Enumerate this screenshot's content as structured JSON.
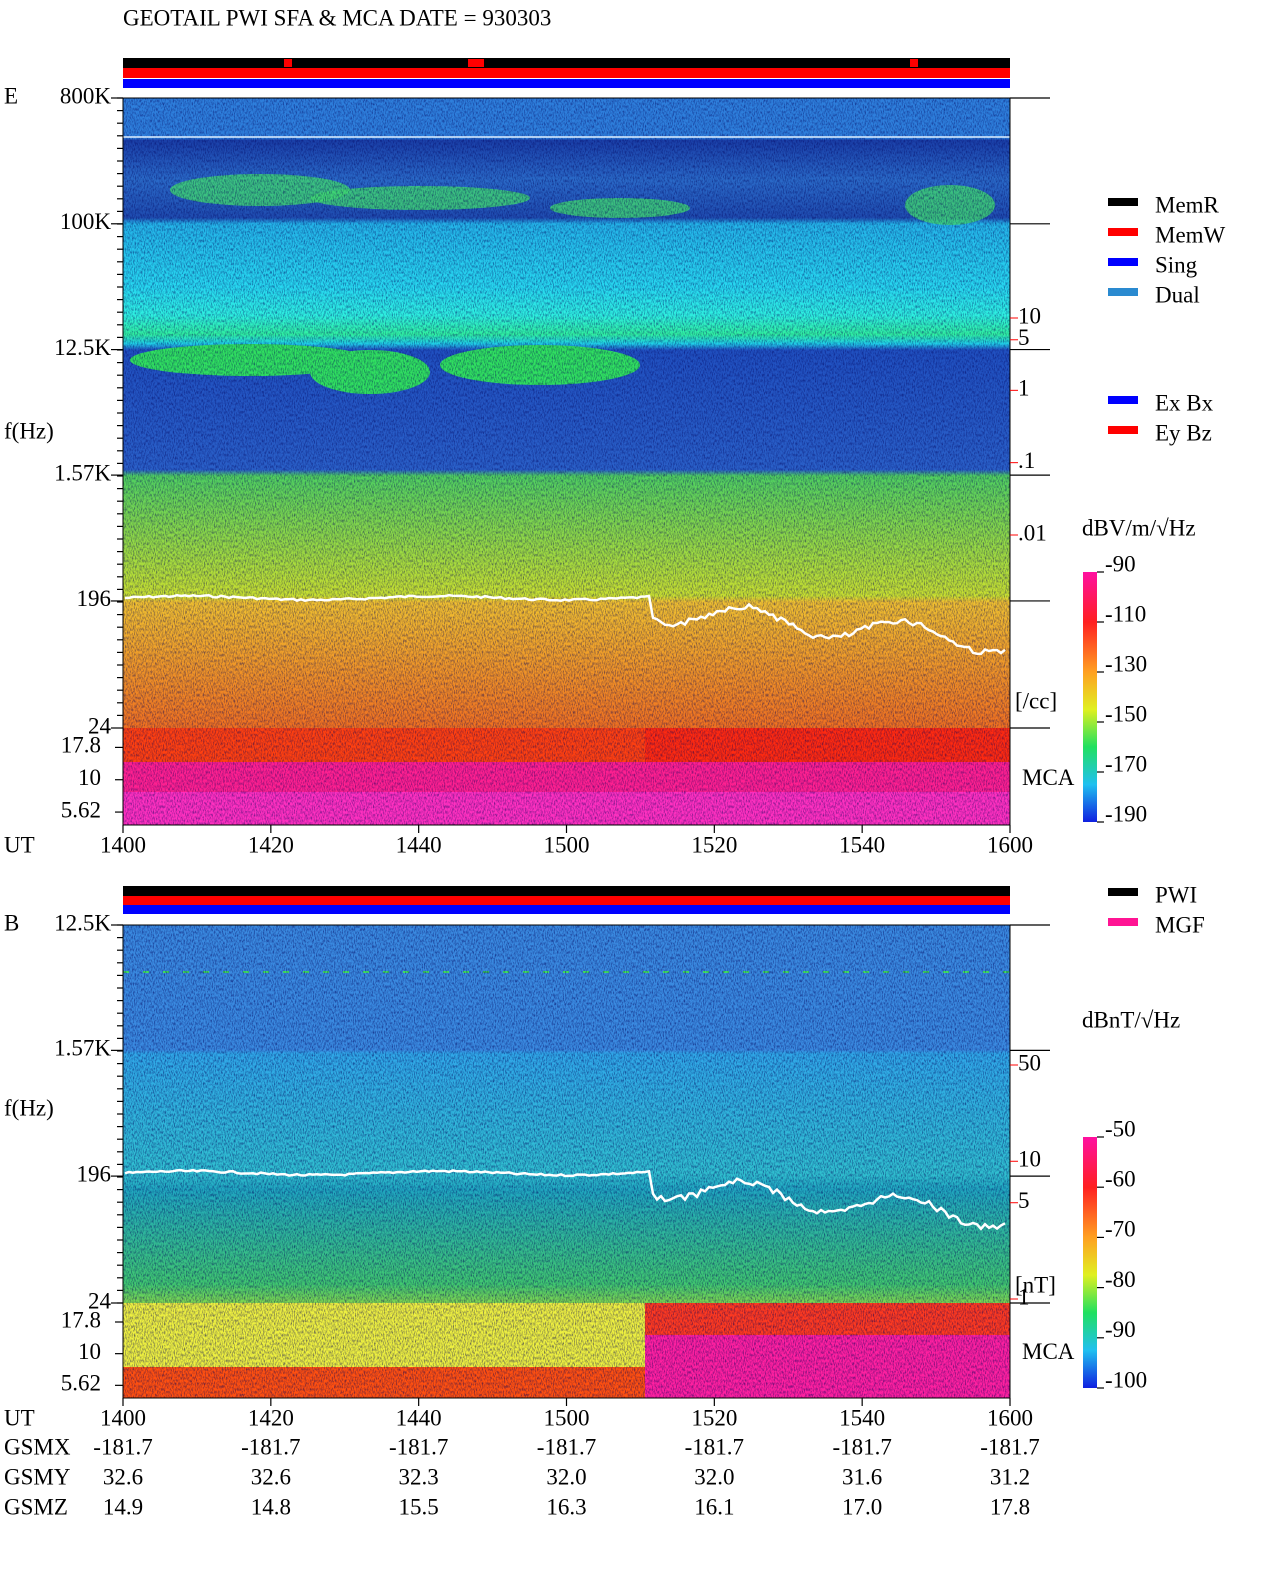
{
  "title": "GEOTAIL  PWI SFA & MCA   DATE = 930303",
  "panels": [
    {
      "label": "E",
      "y_label": "f(Hz)",
      "y_scale": "log",
      "ylim": [
        24,
        800000
      ],
      "yticks": [
        {
          "value": 800000,
          "label": "800K"
        },
        {
          "value": 100000,
          "label": "100K"
        },
        {
          "value": 12500,
          "label": "12.5K"
        },
        {
          "value": 1570,
          "label": "1.57K"
        },
        196,
        24
      ],
      "mca_label": "MCA",
      "mca_channels": [
        "17.8",
        "10",
        "5.62"
      ],
      "density_axis": {
        "scale": "log",
        "lim": [
          0.01,
          10
        ],
        "ticks": [
          10,
          5,
          1,
          {
            "value": 0.1,
            "label": ".1"
          },
          {
            "value": 0.01,
            "label": ".01"
          }
        ],
        "unit": "[/cc]",
        "color": "#ff0000"
      },
      "legend": [
        {
          "name": "MemR",
          "color": "#000000"
        },
        {
          "name": "MemW",
          "color": "#ff0000"
        },
        {
          "name": "Sing",
          "color": "#0000ff"
        },
        {
          "name": "Dual",
          "color": "#2a8ad0"
        }
      ],
      "legend2": [
        {
          "name": "Ex Bx",
          "color": "#0000ff"
        },
        {
          "name": "Ey Bz",
          "color": "#ff0000"
        }
      ],
      "colorbar": {
        "unit": "dBV/m/√Hz",
        "lim": [
          -190,
          -90
        ],
        "ticks": [
          -90,
          -110,
          -130,
          -150,
          -170,
          -190
        ]
      },
      "x_label": "UT",
      "xticks": [
        "1400",
        "1420",
        "1440",
        "1500",
        "1520",
        "1540",
        "1600"
      ]
    },
    {
      "label": "B",
      "y_label": "f(Hz)",
      "y_scale": "log",
      "ylim": [
        24,
        12500
      ],
      "yticks": [
        {
          "value": 12500,
          "label": "12.5K"
        },
        {
          "value": 1570,
          "label": "1.57K"
        },
        196,
        24
      ],
      "mca_label": "MCA",
      "mca_channels": [
        "17.8",
        "10",
        "5.62"
      ],
      "density_axis": {
        "scale": "log",
        "lim": [
          1,
          50
        ],
        "ticks": [
          50,
          10,
          5,
          1
        ],
        "unit": "[nT]",
        "color": "#ff0000"
      },
      "legend": [
        {
          "name": "PWI",
          "color": "#000000"
        },
        {
          "name": "MGF",
          "color": "#ff1493"
        }
      ],
      "colorbar": {
        "unit": "dBnT/√Hz",
        "lim": [
          -100,
          -50
        ],
        "ticks": [
          -50,
          -60,
          -70,
          -80,
          -90,
          -100
        ]
      },
      "x_label": "UT",
      "xticks": [
        "1400",
        "1420",
        "1440",
        "1500",
        "1520",
        "1540",
        "1600"
      ]
    }
  ],
  "orbit": {
    "rows": [
      {
        "label": "GSMX",
        "values": [
          "-181.7",
          "-181.7",
          "-181.7",
          "-181.7",
          "-181.7",
          "-181.7",
          "-181.7"
        ]
      },
      {
        "label": "GSMY",
        "values": [
          "32.6",
          "32.6",
          "32.3",
          "32.0",
          "32.0",
          "31.6",
          "31.2"
        ]
      },
      {
        "label": "GSMZ",
        "values": [
          "14.9",
          "14.8",
          "15.5",
          "16.3",
          "16.1",
          "17.0",
          "17.8"
        ]
      }
    ]
  }
}
